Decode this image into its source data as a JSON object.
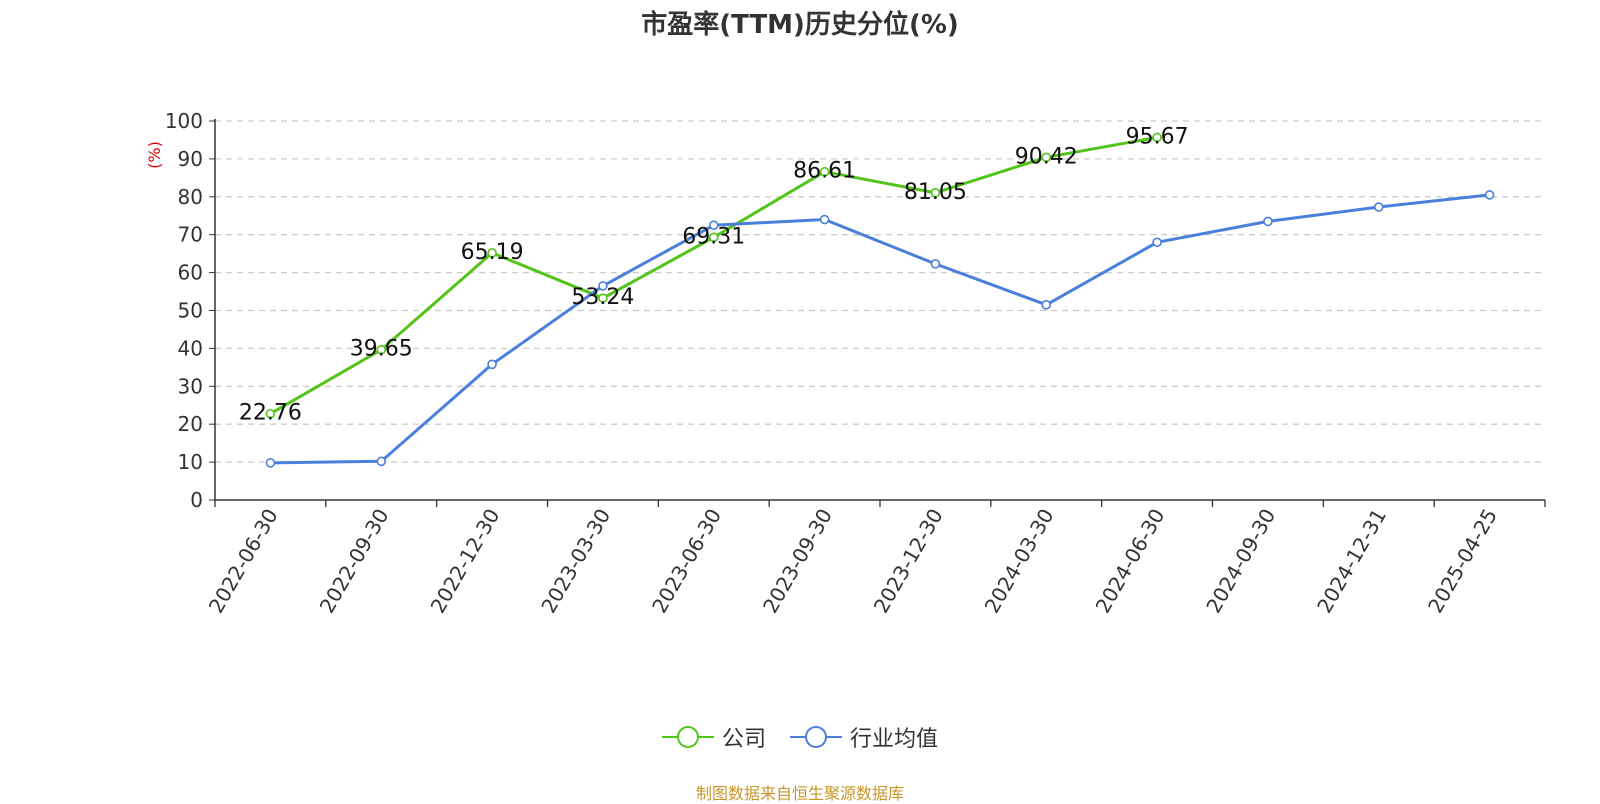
{
  "colors": {
    "company": "#52c41a",
    "industry": "#4a7fdc",
    "source": "#c8962b",
    "ylabel": "#e00000"
  },
  "chart_data": {
    "type": "line",
    "title": "市盈率(TTM)历史分位(%)",
    "ylabel": "(%)",
    "xlabel": "",
    "ylim": [
      0,
      100
    ],
    "yticks": [
      0,
      10,
      20,
      30,
      40,
      50,
      60,
      70,
      80,
      90,
      100
    ],
    "categories": [
      "2022-06-30",
      "2022-09-30",
      "2022-12-30",
      "2023-03-30",
      "2023-06-30",
      "2023-09-30",
      "2023-12-30",
      "2024-03-30",
      "2024-06-30",
      "2024-09-30",
      "2024-12-31",
      "2025-04-25"
    ],
    "series": [
      {
        "name": "公司",
        "color": "#52c41a",
        "show_labels": true,
        "values": [
          22.76,
          39.65,
          65.19,
          53.24,
          69.31,
          86.61,
          81.05,
          90.42,
          95.67,
          null,
          null,
          null
        ]
      },
      {
        "name": "行业均值",
        "color": "#4a7fdc",
        "show_labels": false,
        "values": [
          9.8,
          10.2,
          35.8,
          56.5,
          72.5,
          74.0,
          62.3,
          51.5,
          68.0,
          73.5,
          77.3,
          80.5
        ]
      }
    ],
    "grid": true,
    "legend_position": "bottom-center"
  },
  "source_text": "制图数据来自恒生聚源数据库"
}
